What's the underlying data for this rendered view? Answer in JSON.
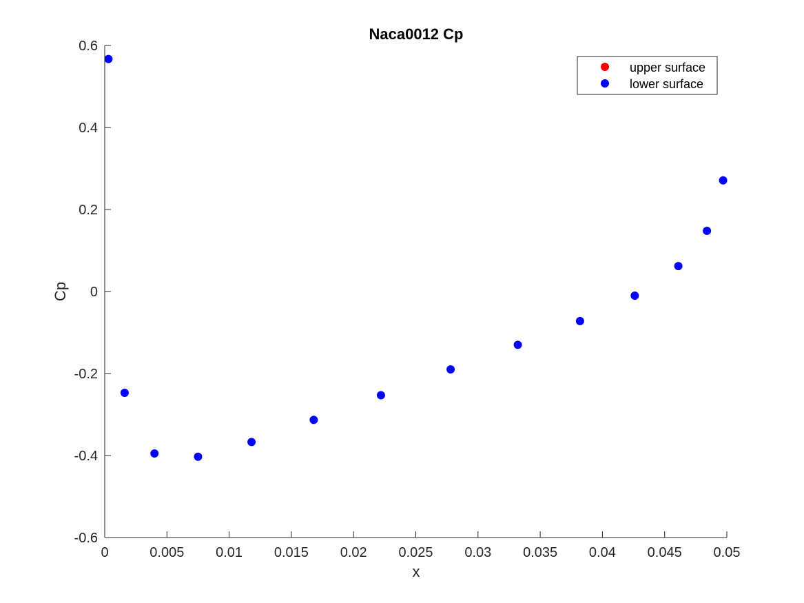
{
  "chart_data": {
    "type": "scatter",
    "title": "Naca0012 Cp",
    "xlabel": "x",
    "ylabel": "Cp",
    "xlim": [
      0,
      0.05
    ],
    "ylim": [
      -0.6,
      0.6
    ],
    "xticks": [
      0,
      0.005,
      0.01,
      0.015,
      0.02,
      0.025,
      0.03,
      0.035,
      0.04,
      0.045,
      0.05
    ],
    "xtick_labels": [
      "0",
      "0.005",
      "0.01",
      "0.015",
      "0.02",
      "0.025",
      "0.03",
      "0.035",
      "0.04",
      "0.045",
      "0.05"
    ],
    "yticks": [
      -0.6,
      -0.4,
      -0.2,
      0,
      0.2,
      0.4,
      0.6
    ],
    "ytick_labels": [
      "-0.6",
      "-0.4",
      "-0.2",
      "0",
      "0.2",
      "0.4",
      "0.6"
    ],
    "grid": false,
    "legend_position": "top-right",
    "series": [
      {
        "name": "upper surface",
        "color": "#ff0000",
        "x": [],
        "y": []
      },
      {
        "name": "lower surface",
        "color": "#0000ff",
        "x": [
          0.0003,
          0.0016,
          0.004,
          0.0075,
          0.0118,
          0.0168,
          0.0222,
          0.0278,
          0.0332,
          0.0382,
          0.0426,
          0.0461,
          0.0484,
          0.0497
        ],
        "y": [
          0.567,
          -0.247,
          -0.395,
          -0.403,
          -0.367,
          -0.313,
          -0.253,
          -0.19,
          -0.13,
          -0.072,
          -0.01,
          0.062,
          0.148,
          0.271
        ]
      }
    ]
  }
}
